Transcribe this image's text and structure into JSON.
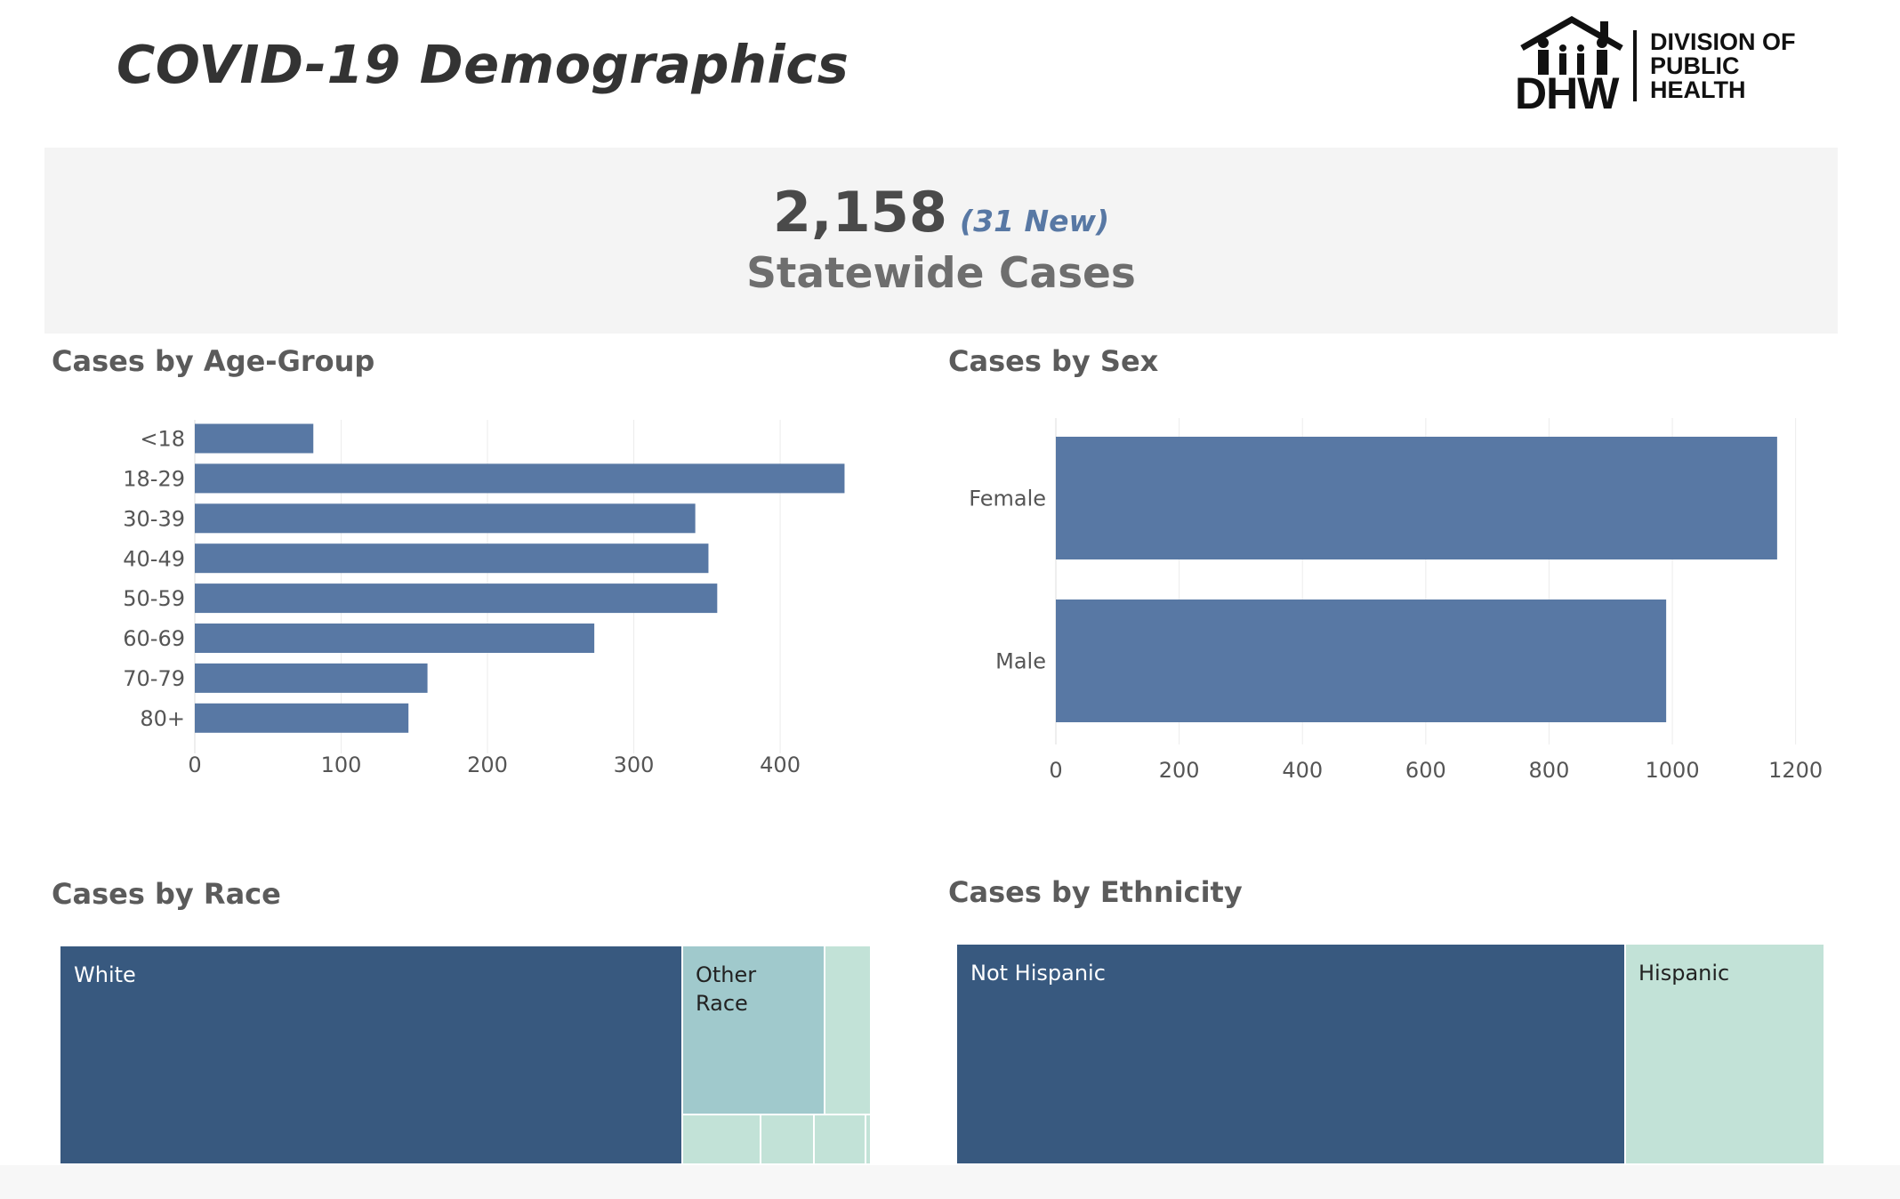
{
  "header": {
    "title": "COVID-19 Demographics"
  },
  "logo": {
    "mark": "DHW",
    "line1": "DIVISION OF",
    "line2": "PUBLIC",
    "line3": "HEALTH"
  },
  "summary": {
    "count": "2,158",
    "new": "(31 New)",
    "label": "Statewide Cases"
  },
  "colors": {
    "bar": "#5878a4",
    "dark": "#38597f",
    "mid": "#a0c9cc",
    "light": "#c2e2d7",
    "grid": "#ececec"
  },
  "sections": {
    "age": "Cases by Age-Group",
    "sex": "Cases by Sex",
    "race": "Cases by Race",
    "ethnicity": "Cases by Ethnicity"
  },
  "chart_data": [
    {
      "id": "age",
      "type": "bar",
      "orientation": "horizontal",
      "categories": [
        "<18",
        "18-29",
        "30-39",
        "40-49",
        "50-59",
        "60-69",
        "70-79",
        "80+"
      ],
      "values": [
        81,
        444,
        342,
        351,
        357,
        273,
        159,
        146
      ],
      "xlim": [
        0,
        465
      ],
      "xticks": [
        0,
        100,
        200,
        300,
        400
      ],
      "grid": true
    },
    {
      "id": "sex",
      "type": "bar",
      "orientation": "horizontal",
      "categories": [
        "Female",
        "Male"
      ],
      "values": [
        1170,
        990
      ],
      "xlim": [
        0,
        1225
      ],
      "xticks": [
        0,
        200,
        400,
        600,
        800,
        1000,
        1200
      ],
      "grid": true
    },
    {
      "id": "race",
      "type": "treemap",
      "labels": [
        "White",
        "Other Race"
      ],
      "note": "Additional small unlabeled categories are shown as tiles without text."
    },
    {
      "id": "ethnicity",
      "type": "treemap",
      "labels": [
        "Not Hispanic",
        "Hispanic"
      ]
    }
  ]
}
